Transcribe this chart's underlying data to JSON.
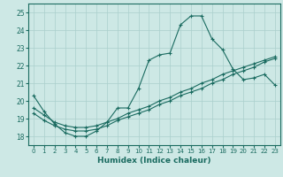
{
  "xlabel": "Humidex (Indice chaleur)",
  "ylabel": "",
  "xlim": [
    -0.5,
    23.5
  ],
  "ylim": [
    17.5,
    25.5
  ],
  "xticks": [
    0,
    1,
    2,
    3,
    4,
    5,
    6,
    7,
    8,
    9,
    10,
    11,
    12,
    13,
    14,
    15,
    16,
    17,
    18,
    19,
    20,
    21,
    22,
    23
  ],
  "yticks": [
    18,
    19,
    20,
    21,
    22,
    23,
    24,
    25
  ],
  "bg_color": "#cde8e5",
  "line_color": "#1a6b60",
  "grid_color": "#aacfcc",
  "line1_x": [
    0,
    1,
    2,
    3,
    4,
    5,
    6,
    7,
    8,
    9,
    10,
    11,
    12,
    13,
    14,
    15,
    16,
    17,
    18,
    19,
    20,
    21,
    22,
    23
  ],
  "line1_y": [
    20.3,
    19.4,
    18.7,
    18.2,
    18.0,
    18.0,
    18.3,
    18.8,
    19.6,
    19.6,
    20.7,
    22.3,
    22.6,
    22.7,
    24.3,
    24.8,
    24.8,
    23.5,
    22.9,
    21.8,
    21.2,
    21.3,
    21.5,
    20.9
  ],
  "line2_x": [
    0,
    1,
    2,
    3,
    4,
    5,
    6,
    7,
    8,
    9,
    10,
    11,
    12,
    13,
    14,
    15,
    16,
    17,
    18,
    19,
    20,
    21,
    22,
    23
  ],
  "line2_y": [
    19.6,
    19.2,
    18.8,
    18.6,
    18.5,
    18.5,
    18.6,
    18.8,
    19.0,
    19.3,
    19.5,
    19.7,
    20.0,
    20.2,
    20.5,
    20.7,
    21.0,
    21.2,
    21.5,
    21.7,
    21.9,
    22.1,
    22.3,
    22.5
  ],
  "line3_x": [
    0,
    1,
    2,
    3,
    4,
    5,
    6,
    7,
    8,
    9,
    10,
    11,
    12,
    13,
    14,
    15,
    16,
    17,
    18,
    19,
    20,
    21,
    22,
    23
  ],
  "line3_y": [
    19.3,
    18.9,
    18.6,
    18.4,
    18.3,
    18.3,
    18.4,
    18.6,
    18.9,
    19.1,
    19.3,
    19.5,
    19.8,
    20.0,
    20.3,
    20.5,
    20.7,
    21.0,
    21.2,
    21.5,
    21.7,
    21.9,
    22.2,
    22.4
  ]
}
